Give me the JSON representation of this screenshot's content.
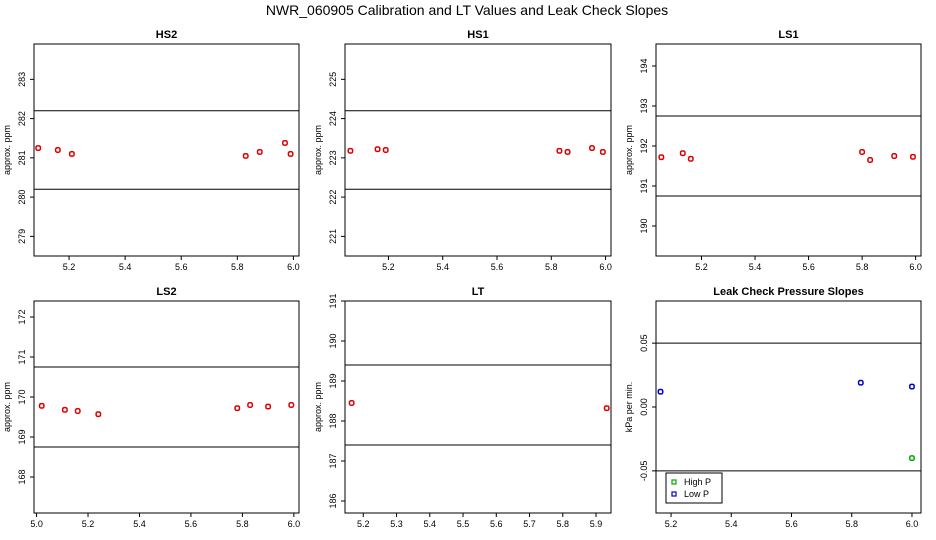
{
  "figure": {
    "title": "NWR_060905  Calibration and LT Values and Leak Check Slopes"
  },
  "chart_data": [
    {
      "type": "scatter",
      "title": "HS2",
      "ylabel": "approx. ppm",
      "xlim": [
        5.075,
        6.02
      ],
      "ylim": [
        278.5,
        283.9
      ],
      "xticks": [
        5.2,
        5.4,
        5.6,
        5.8,
        6.0
      ],
      "xticklabels": [
        "5.2",
        "5.4",
        "5.6",
        "5.8",
        "6.0"
      ],
      "yticks": [
        279,
        280,
        281,
        282,
        283
      ],
      "yticklabels": [
        "279",
        "280",
        "281",
        "282",
        "283"
      ],
      "hlines": [
        282.2,
        280.2
      ],
      "series": [
        {
          "color": "#dd0000",
          "x": [
            5.09,
            5.16,
            5.21,
            5.83,
            5.88,
            5.97,
            5.99
          ],
          "y": [
            281.25,
            281.2,
            281.1,
            281.05,
            281.15,
            281.38,
            281.1
          ]
        }
      ]
    },
    {
      "type": "scatter",
      "title": "HS1",
      "ylabel": "approx. ppm",
      "xlim": [
        5.04,
        6.02
      ],
      "ylim": [
        220.5,
        225.9
      ],
      "xticks": [
        5.2,
        5.4,
        5.6,
        5.8,
        6.0
      ],
      "xticklabels": [
        "5.2",
        "5.4",
        "5.6",
        "5.8",
        "6.0"
      ],
      "yticks": [
        221,
        222,
        223,
        224,
        225
      ],
      "yticklabels": [
        "221",
        "222",
        "223",
        "224",
        "225"
      ],
      "hlines": [
        224.2,
        222.2
      ],
      "series": [
        {
          "color": "#dd0000",
          "x": [
            5.06,
            5.16,
            5.19,
            5.83,
            5.86,
            5.95,
            5.99
          ],
          "y": [
            223.18,
            223.22,
            223.2,
            223.18,
            223.15,
            223.25,
            223.15
          ]
        }
      ]
    },
    {
      "type": "scatter",
      "title": "LS1",
      "ylabel": "approx. ppm",
      "xlim": [
        5.03,
        6.02
      ],
      "ylim": [
        189.25,
        194.55
      ],
      "xticks": [
        5.2,
        5.4,
        5.6,
        5.8,
        6.0
      ],
      "xticklabels": [
        "5.2",
        "5.4",
        "5.6",
        "5.8",
        "6.0"
      ],
      "yticks": [
        190,
        191,
        192,
        193,
        194
      ],
      "yticklabels": [
        "190",
        "191",
        "192",
        "193",
        "194"
      ],
      "hlines": [
        192.75,
        190.75
      ],
      "series": [
        {
          "color": "#dd0000",
          "x": [
            5.05,
            5.13,
            5.16,
            5.8,
            5.83,
            5.92,
            5.99
          ],
          "y": [
            191.72,
            191.82,
            191.68,
            191.85,
            191.65,
            191.75,
            191.73
          ]
        }
      ]
    },
    {
      "type": "scatter",
      "title": "LS2",
      "ylabel": "approx. ppm",
      "xlim": [
        4.99,
        6.02
      ],
      "ylim": [
        167.1,
        172.4
      ],
      "xticks": [
        5.0,
        5.2,
        5.4,
        5.6,
        5.8,
        6.0
      ],
      "xticklabels": [
        "5.0",
        "5.2",
        "5.4",
        "5.6",
        "5.8",
        "6.0"
      ],
      "yticks": [
        168,
        169,
        170,
        171,
        172
      ],
      "yticklabels": [
        "168",
        "169",
        "170",
        "171",
        "172"
      ],
      "hlines": [
        170.75,
        168.75
      ],
      "series": [
        {
          "color": "#dd0000",
          "x": [
            5.02,
            5.11,
            5.16,
            5.24,
            5.78,
            5.83,
            5.9,
            5.99
          ],
          "y": [
            169.78,
            169.68,
            169.65,
            169.57,
            169.72,
            169.8,
            169.76,
            169.8
          ]
        }
      ]
    },
    {
      "type": "scatter",
      "title": "LT",
      "ylabel": "approx. ppm",
      "xlim": [
        5.145,
        5.945
      ],
      "ylim": [
        185.7,
        191.0
      ],
      "xticks": [
        5.2,
        5.3,
        5.4,
        5.5,
        5.6,
        5.7,
        5.8,
        5.9
      ],
      "xticklabels": [
        "5.2",
        "5.3",
        "5.4",
        "5.5",
        "5.6",
        "5.7",
        "5.8",
        "5.9"
      ],
      "yticks": [
        186,
        187,
        188,
        189,
        190,
        191
      ],
      "yticklabels": [
        "186",
        "187",
        "188",
        "189",
        "190",
        "191"
      ],
      "hlines": [
        189.4,
        187.4
      ],
      "series": [
        {
          "color": "#dd0000",
          "x": [
            5.165,
            5.932
          ],
          "y": [
            188.45,
            188.32
          ]
        }
      ]
    },
    {
      "type": "scatter",
      "title": "Leak Check Pressure Slopes",
      "ylabel": "kPa per min.",
      "xlim": [
        5.15,
        6.03
      ],
      "ylim": [
        -0.083,
        0.083
      ],
      "xticks": [
        5.2,
        5.4,
        5.6,
        5.8,
        6.0
      ],
      "xticklabels": [
        "5.2",
        "5.4",
        "5.6",
        "5.8",
        "6.0"
      ],
      "yticks": [
        -0.05,
        0.0,
        0.05
      ],
      "yticklabels": [
        "-0.05",
        "0.00",
        "0.05"
      ],
      "hlines": [
        0.05,
        -0.05
      ],
      "legend": {
        "position": "bottom-left"
      },
      "series": [
        {
          "name": "High P",
          "color": "#00aa00",
          "x": [
            6.0
          ],
          "y": [
            -0.04
          ]
        },
        {
          "name": "Low P",
          "color": "#0000cc",
          "x": [
            5.165,
            5.83,
            6.0
          ],
          "y": [
            0.012,
            0.019,
            0.016
          ]
        }
      ]
    }
  ]
}
